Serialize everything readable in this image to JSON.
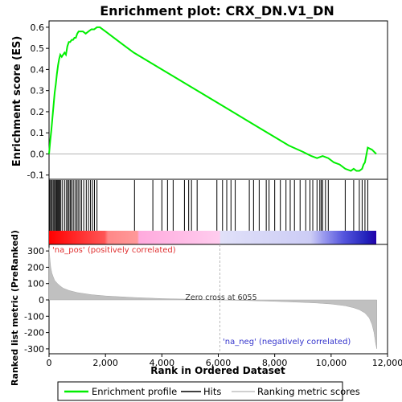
{
  "chart_data": {
    "type": "line",
    "title": "Enrichment plot: CRX_DN.V1_DN",
    "es_panel": {
      "ylabel": "Enrichment score (ES)",
      "ylim": [
        -0.12,
        0.63
      ],
      "yticks": [
        "0.6",
        "0.5",
        "0.4",
        "0.3",
        "0.2",
        "0.1",
        "0.0",
        "-0.1"
      ],
      "ytick_values": [
        0.6,
        0.5,
        0.4,
        0.3,
        0.2,
        0.1,
        0.0,
        -0.1
      ],
      "series_name": "Enrichment profile",
      "color": "#00ff00",
      "x": [
        0,
        40,
        80,
        120,
        160,
        200,
        240,
        280,
        320,
        360,
        400,
        450,
        500,
        550,
        600,
        650,
        700,
        750,
        800,
        850,
        900,
        950,
        1000,
        1050,
        1100,
        1200,
        1300,
        1400,
        1500,
        1600,
        1700,
        1800,
        2000,
        2500,
        3000,
        3500,
        4000,
        4500,
        5000,
        5500,
        6000,
        6500,
        7000,
        7500,
        8000,
        8500,
        9000,
        9300,
        9500,
        9700,
        9900,
        10100,
        10300,
        10500,
        10700,
        10800,
        10900,
        11000,
        11100,
        11150,
        11200,
        11300,
        11450,
        11600
      ],
      "y": [
        0.0,
        0.06,
        0.11,
        0.17,
        0.23,
        0.29,
        0.33,
        0.38,
        0.42,
        0.45,
        0.47,
        0.46,
        0.47,
        0.48,
        0.47,
        0.51,
        0.53,
        0.53,
        0.54,
        0.54,
        0.55,
        0.55,
        0.57,
        0.58,
        0.58,
        0.58,
        0.57,
        0.58,
        0.59,
        0.59,
        0.6,
        0.6,
        0.58,
        0.53,
        0.48,
        0.44,
        0.4,
        0.36,
        0.32,
        0.28,
        0.24,
        0.2,
        0.16,
        0.12,
        0.08,
        0.04,
        0.01,
        -0.01,
        -0.02,
        -0.01,
        -0.02,
        -0.04,
        -0.05,
        -0.07,
        -0.08,
        -0.07,
        -0.08,
        -0.08,
        -0.07,
        -0.05,
        -0.04,
        0.03,
        0.02,
        0.0
      ]
    },
    "hits": {
      "series_name": "Hits",
      "positions": [
        30,
        70,
        110,
        150,
        190,
        230,
        260,
        290,
        320,
        350,
        380,
        420,
        480,
        560,
        620,
        670,
        710,
        760,
        800,
        860,
        920,
        980,
        1030,
        1090,
        1150,
        1230,
        1320,
        1400,
        1470,
        1540,
        1610,
        1700,
        3030,
        3680,
        4000,
        4200,
        4400,
        4800,
        4950,
        5050,
        5250,
        5950,
        6150,
        6300,
        6450,
        6600,
        7100,
        7250,
        7450,
        7700,
        7800,
        8000,
        8200,
        8400,
        8550,
        8700,
        8900,
        9100,
        9250,
        9350,
        9500,
        9600,
        9650,
        9700,
        9800,
        9900,
        10500,
        10800,
        11000,
        11100,
        11200,
        11300
      ]
    },
    "ranked_panel": {
      "ylabel": "Ranked list metric (PreRanked)",
      "ylim": [
        -330,
        340
      ],
      "yticks": [
        "300",
        "200",
        "100",
        "0",
        "-100",
        "-200",
        "-300"
      ],
      "ytick_values": [
        300,
        200,
        100,
        0,
        -100,
        -200,
        -300
      ],
      "series_name": "Ranking metric scores",
      "x": [
        0,
        30,
        60,
        100,
        150,
        200,
        300,
        400,
        500,
        700,
        1000,
        1500,
        2000,
        3000,
        4000,
        5000,
        6055,
        7000,
        8000,
        9000,
        9500,
        10000,
        10500,
        10800,
        11000,
        11200,
        11350,
        11450,
        11520,
        11580,
        11620
      ],
      "values": [
        320,
        250,
        200,
        165,
        140,
        120,
        100,
        85,
        72,
        58,
        45,
        32,
        24,
        15,
        8,
        4,
        0,
        -4,
        -9,
        -15,
        -19,
        -25,
        -36,
        -48,
        -60,
        -80,
        -110,
        -150,
        -200,
        -270,
        -300
      ],
      "pos_label": "'na_pos' (positively correlated)",
      "neg_label": "'na_neg' (negatively correlated)",
      "zero_cross_label": "Zero cross at 6055",
      "zero_cross": 6055
    },
    "xlabel": "Rank in Ordered Dataset",
    "xlim": [
      0,
      12000
    ],
    "xticks": [
      "0",
      "2,000",
      "4,000",
      "6,000",
      "8,000",
      "10,000",
      "12,000"
    ],
    "xtick_values": [
      0,
      2000,
      4000,
      6000,
      8000,
      10000,
      12000
    ],
    "n_genes": 11600,
    "legend": {
      "placement": "bottom",
      "items": [
        "Enrichment profile",
        "Hits",
        "Ranking metric scores"
      ]
    },
    "colors": {
      "profile": "#00ff00",
      "pos_label": "#e03030",
      "neg_label": "#3333cc",
      "fill": "#c0c0c0"
    }
  }
}
